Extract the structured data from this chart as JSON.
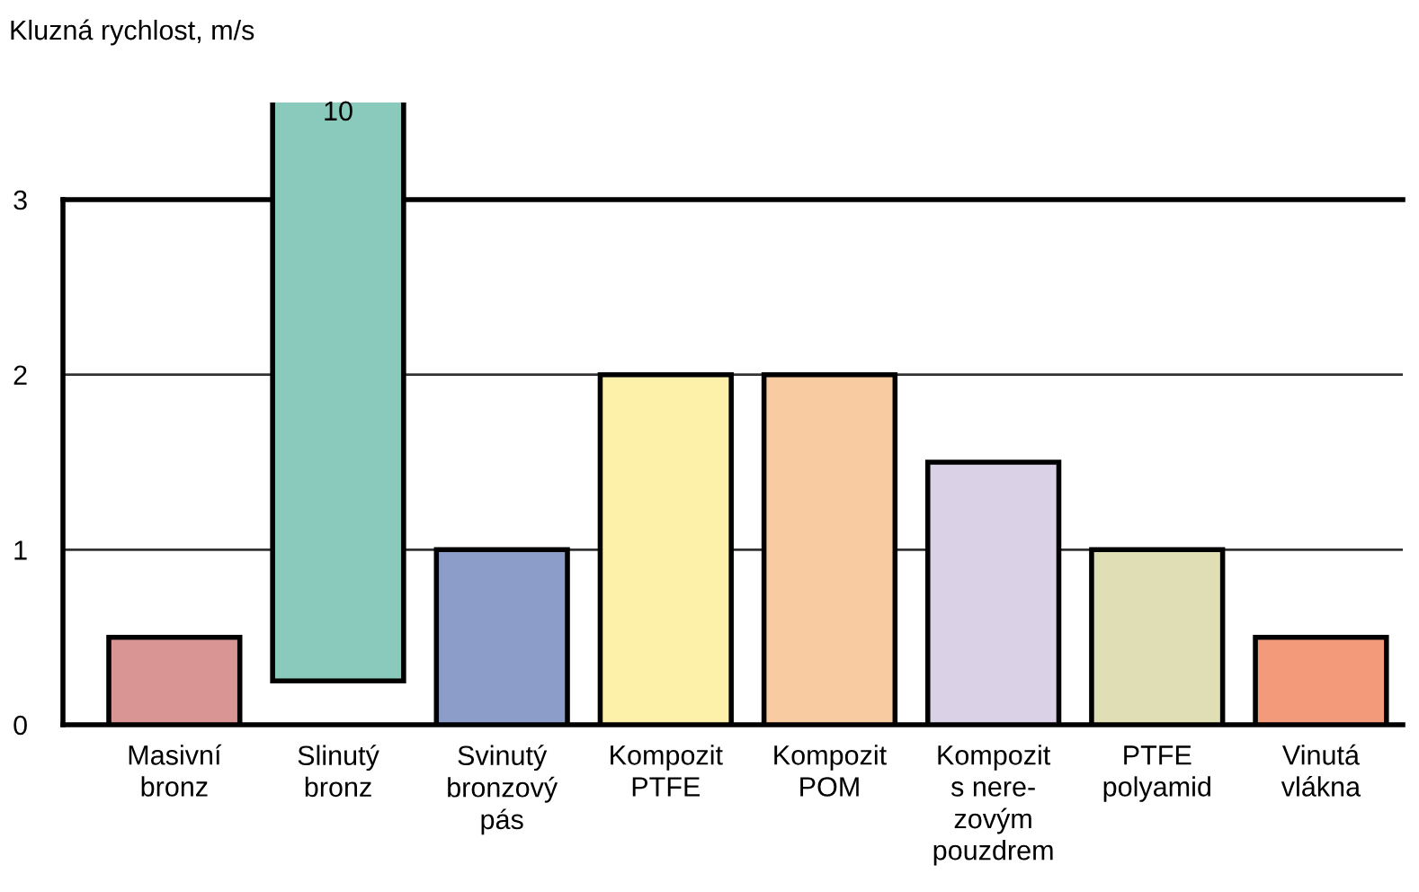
{
  "chart_data": {
    "type": "bar",
    "annotations": [
      "Kluzná rychlost, m/s"
    ],
    "categories": [
      "Masivní\nbronz",
      "Slinutý\nbronz",
      "Svinutý\nbronzový\npás",
      "Kompozit\nPTFE",
      "Kompozit\nPOM",
      "Kompozit\ns nere-\nzovým\npouzdrem",
      "PTFE\npolyamid",
      "Vinutá\nvlákna"
    ],
    "values": [
      0.5,
      9.75,
      1,
      2,
      2,
      1.5,
      1,
      0.5
    ],
    "base": [
      0,
      0.25,
      0,
      0,
      0,
      0,
      0,
      0
    ],
    "value_labels": [
      null,
      "10",
      null,
      null,
      null,
      null,
      null,
      null
    ],
    "colors": [
      "#d89593",
      "#8acabd",
      "#8c9dc9",
      "#fdf0a8",
      "#f8cba0",
      "#dbd1e6",
      "#dfdeb4",
      "#f29a79"
    ],
    "ylim": [
      0,
      3
    ],
    "yticks": [
      0,
      1,
      2,
      3
    ],
    "grid": "y",
    "legend": false
  }
}
